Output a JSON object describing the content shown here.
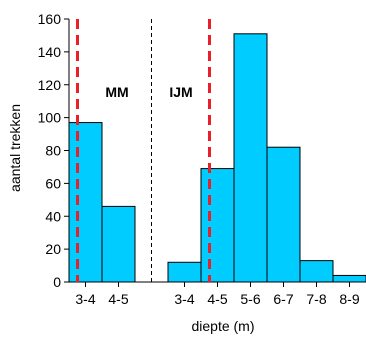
{
  "chart_data": {
    "type": "bar",
    "xlabel": "diepte (m)",
    "ylabel": "aantal trekken",
    "ylim": [
      0,
      160
    ],
    "yticks": [
      0,
      20,
      40,
      60,
      80,
      100,
      120,
      140,
      160
    ],
    "bar_color": "#00CCFF",
    "bar_edge_color": "#000000",
    "divider": {
      "style": "dashed",
      "color": "#000000"
    },
    "reference_line_color": "#E8202A",
    "groups": [
      {
        "label": "MM",
        "categories": [
          "3-4",
          "4-5"
        ],
        "values": [
          97,
          46
        ],
        "reference_line": "3-4"
      },
      {
        "label": "IJM",
        "categories": [
          "3-4",
          "4-5",
          "5-6",
          "6-7",
          "7-8",
          "8-9"
        ],
        "values": [
          12,
          69,
          151,
          82,
          13,
          4
        ],
        "reference_line": "4-5"
      }
    ]
  }
}
